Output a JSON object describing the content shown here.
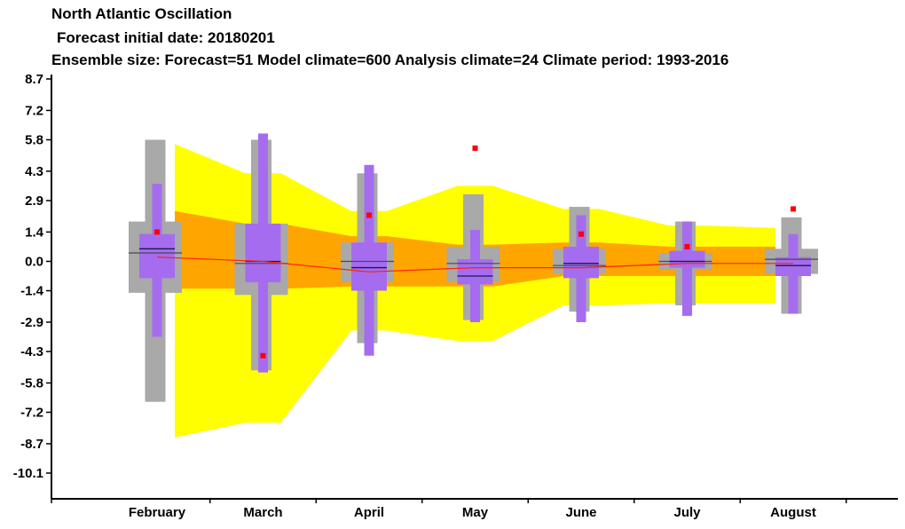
{
  "title": "North Atlantic Oscillation",
  "subtitle_lines": [
    "Forecast initial date: 20180201",
    "Ensemble size: Forecast=51 Model climate=600 Analysis climate=24   Climate period: 1993-2016"
  ],
  "colors": {
    "outer_band": "#ffff00",
    "inner_band": "#ffa500",
    "climate_box": "#a9a9a9",
    "forecast_box": "#a56cf0",
    "median_line": "#1a1a4d",
    "mean_line": "#ff2000",
    "observed_point": "#ff0000"
  },
  "chart_data": {
    "type": "box",
    "categories": [
      "February",
      "March",
      "April",
      "May",
      "June",
      "July",
      "August"
    ],
    "y_ticks": [
      "8.7",
      "7.2",
      "5.8",
      "4.3",
      "2.9",
      "1.4",
      "0.0",
      "-1.4",
      "-2.9",
      "-4.3",
      "-5.8",
      "-7.2",
      "-8.7",
      "-10.1"
    ],
    "ylim": [
      -11.2,
      8.9
    ],
    "climate_bands": {
      "outer_upper": [
        5.6,
        4.2,
        2.4,
        3.6,
        2.5,
        1.7,
        1.6
      ],
      "outer_lower": [
        -8.4,
        -7.7,
        -3.3,
        -3.8,
        -2.1,
        -2.0,
        -2.0
      ],
      "inner_upper": [
        2.4,
        1.8,
        1.2,
        0.8,
        0.9,
        0.7,
        0.7
      ],
      "inner_lower": [
        -1.3,
        -1.3,
        -1.2,
        -1.2,
        -0.7,
        -0.7,
        -0.7
      ]
    },
    "mean_line": [
      0.2,
      0.0,
      -0.5,
      -0.3,
      -0.3,
      -0.1,
      -0.1
    ],
    "model_climate": {
      "min": [
        -6.7,
        -5.2,
        -3.9,
        -2.8,
        -2.4,
        -2.1,
        -2.5
      ],
      "p10": [
        -1.5,
        -1.6,
        -1.0,
        -1.0,
        -0.6,
        -0.4,
        -0.6
      ],
      "p25": [
        -1.5,
        -1.6,
        -1.0,
        -1.0,
        -0.6,
        -0.4,
        -0.6
      ],
      "median": [
        0.4,
        -0.1,
        0.0,
        -0.1,
        -0.2,
        0.0,
        0.1
      ],
      "p75": [
        1.9,
        1.8,
        0.9,
        0.7,
        0.6,
        0.4,
        0.6
      ],
      "p90": [
        1.9,
        1.8,
        0.9,
        0.7,
        0.6,
        0.4,
        0.6
      ],
      "max": [
        5.8,
        5.8,
        4.2,
        3.2,
        2.6,
        1.9,
        2.1
      ]
    },
    "forecast": {
      "min": [
        -3.6,
        -5.3,
        -4.5,
        -2.9,
        -2.9,
        -2.6,
        -2.5
      ],
      "p10": [
        -0.8,
        -1.0,
        -1.4,
        -1.1,
        -0.8,
        -0.3,
        -0.7
      ],
      "p25": [
        -0.8,
        -1.0,
        -1.4,
        -1.1,
        -0.8,
        -0.3,
        -0.7
      ],
      "median": [
        0.6,
        0.0,
        -0.3,
        -0.7,
        -0.1,
        0.0,
        -0.2
      ],
      "p75": [
        1.3,
        1.8,
        0.9,
        0.1,
        0.7,
        0.5,
        0.2
      ],
      "p90": [
        1.3,
        1.8,
        0.9,
        0.1,
        0.7,
        0.5,
        0.2
      ],
      "max": [
        3.7,
        6.1,
        4.6,
        1.5,
        2.2,
        1.9,
        1.3
      ]
    },
    "observed": [
      1.4,
      -4.5,
      2.2,
      5.4,
      1.3,
      0.7,
      2.5
    ]
  }
}
